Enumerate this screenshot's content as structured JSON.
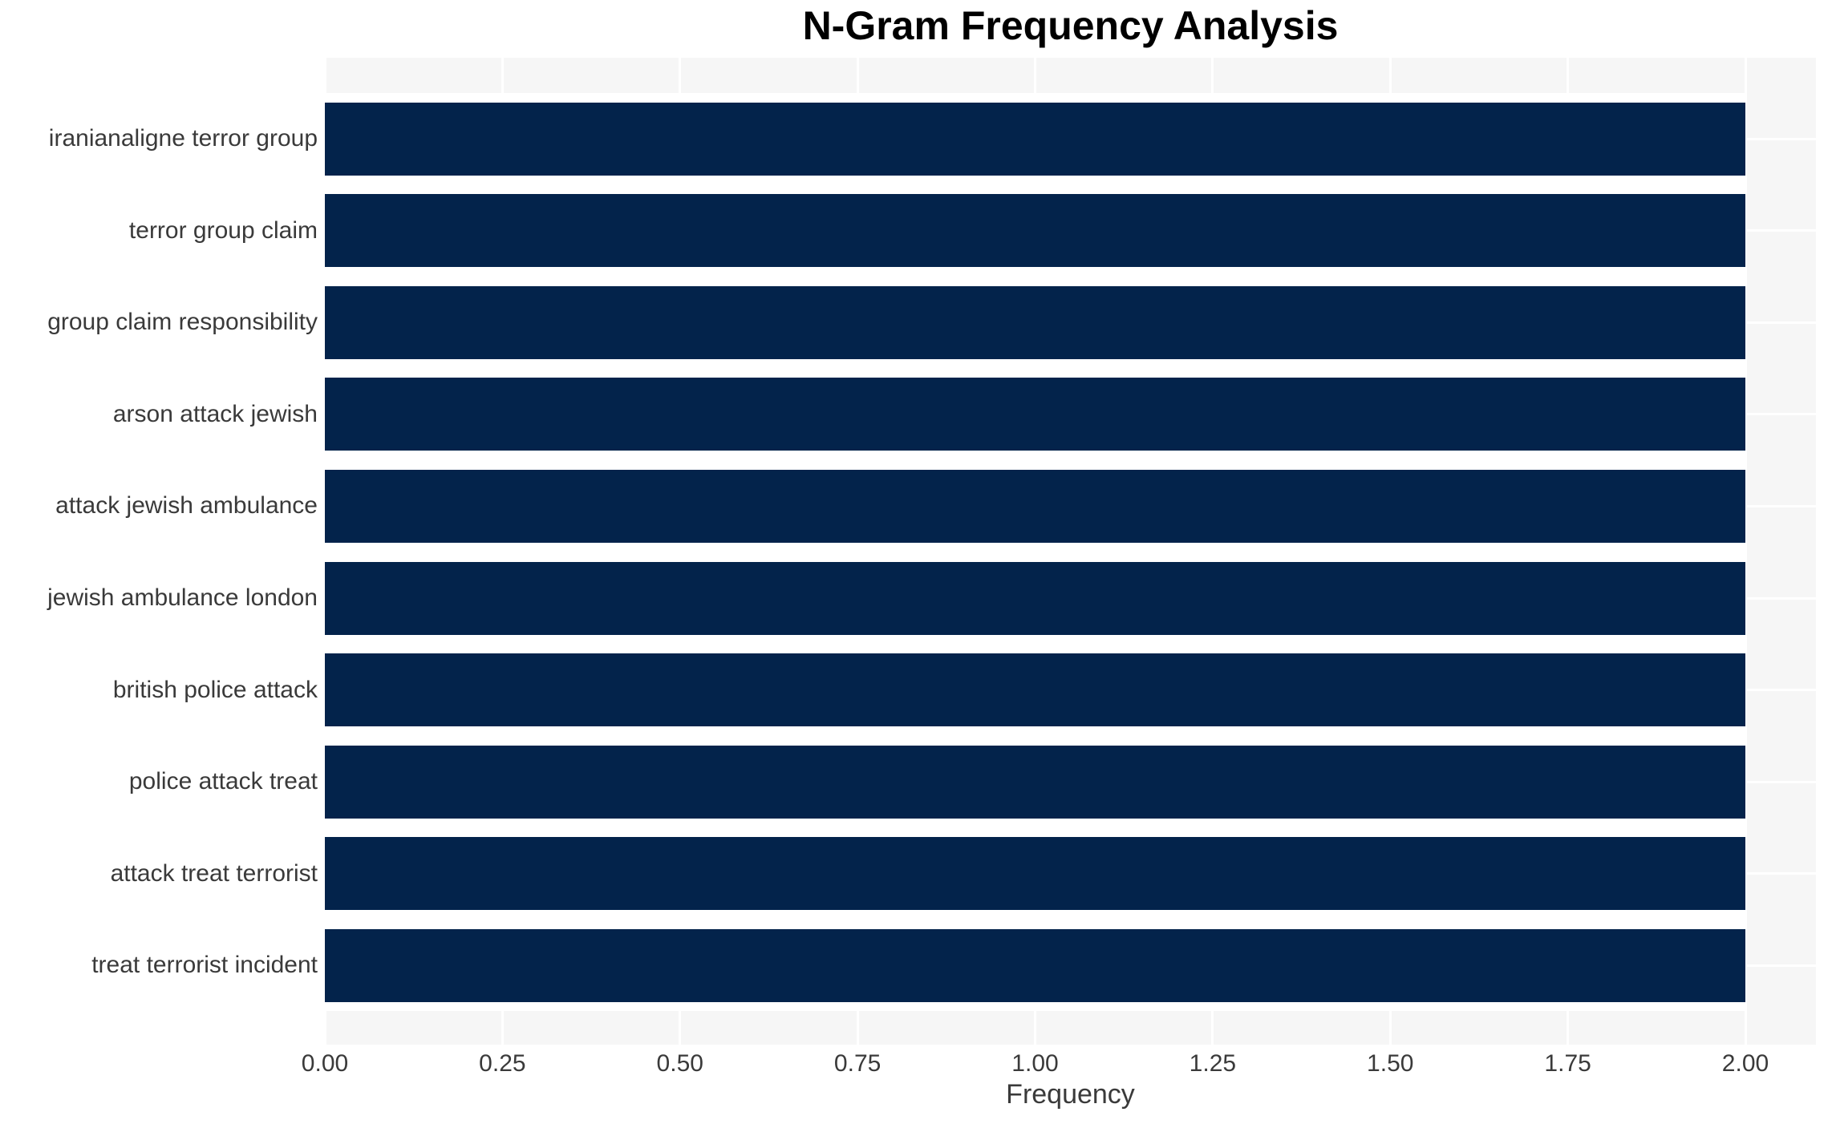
{
  "chart_data": {
    "type": "bar",
    "orientation": "horizontal",
    "title": "N-Gram Frequency Analysis",
    "xlabel": "Frequency",
    "ylabel": "",
    "categories": [
      "iranianaligne terror group",
      "terror group claim",
      "group claim responsibility",
      "arson attack jewish",
      "attack jewish ambulance",
      "jewish ambulance london",
      "british police attack",
      "police attack treat",
      "attack treat terrorist",
      "treat terrorist incident"
    ],
    "values": [
      2.0,
      2.0,
      2.0,
      2.0,
      2.0,
      2.0,
      2.0,
      2.0,
      2.0,
      2.0
    ],
    "xlim": [
      0,
      2.0
    ],
    "xticks": [
      0,
      0.25,
      0.5,
      0.75,
      1.0,
      1.25,
      1.5,
      1.75,
      2.0
    ],
    "xtick_labels": [
      "0.00",
      "0.25",
      "0.50",
      "0.75",
      "1.00",
      "1.25",
      "1.50",
      "1.75",
      "2.00"
    ],
    "legend": "none",
    "grid": "white gridlines on light gray panel",
    "colors": {
      "bar": "#03234b",
      "panel_background": "#f6f6f6",
      "gridline": "#ffffff",
      "figure_background": "#ffffff",
      "tick_text": "#3a3a3a",
      "title_text": "#000000"
    }
  }
}
